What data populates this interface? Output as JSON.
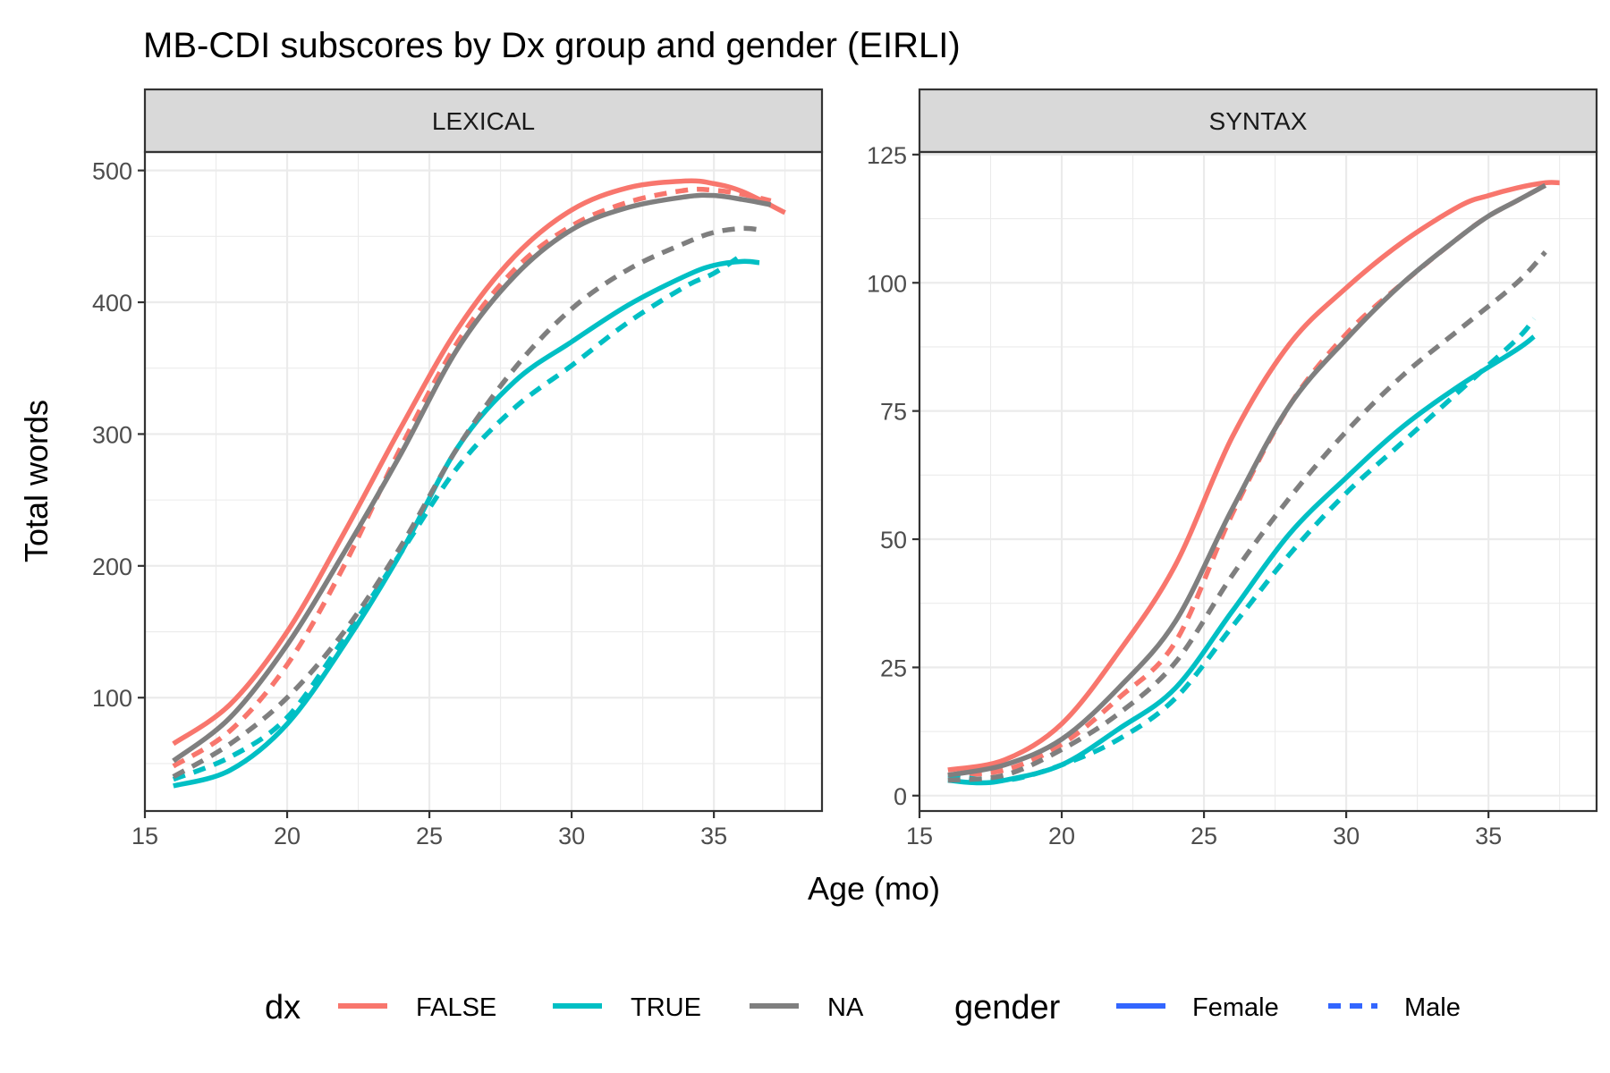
{
  "chart_data": {
    "type": "line",
    "title": "MB-CDI subscores by Dx group and gender (EIRLI)",
    "xlabel": "Age (mo)",
    "ylabel": "Total words",
    "grid": true,
    "legend_position": "bottom",
    "legend": {
      "color_title": "dx",
      "color_entries": [
        {
          "label": "FALSE",
          "color": "#F8766D"
        },
        {
          "label": "TRUE",
          "color": "#00BFC4"
        },
        {
          "label": "NA",
          "color": "#7F7F7F"
        }
      ],
      "linetype_title": "gender",
      "linetype_entries": [
        {
          "label": "Female",
          "linetype": "solid",
          "color": "#3366FF"
        },
        {
          "label": "Male",
          "linetype": "dashed",
          "color": "#3366FF"
        }
      ]
    },
    "panels": [
      {
        "strip": "LEXICAL",
        "xlim": [
          15,
          38.8
        ],
        "ylim": [
          14,
          514
        ],
        "x_ticks": [
          15,
          20,
          25,
          30,
          35
        ],
        "y_ticks": [
          100,
          200,
          300,
          400,
          500
        ],
        "series": [
          {
            "dx": "FALSE",
            "gender": "Female",
            "color": "#F8766D",
            "linetype": "solid",
            "x": [
              16,
              18,
              20,
              22,
              24,
              26,
              28,
              30,
              32,
              34,
              35,
              36,
              37.5
            ],
            "y": [
              65,
              95,
              150,
              225,
              305,
              380,
              435,
              470,
              487,
              492,
              490,
              484,
              468
            ]
          },
          {
            "dx": "FALSE",
            "gender": "Male",
            "color": "#F8766D",
            "linetype": "dashed",
            "x": [
              16,
              18,
              20,
              22,
              24,
              26,
              28,
              30,
              32,
              34,
              35,
              36,
              37
            ],
            "y": [
              48,
              75,
              125,
              200,
              290,
              370,
              425,
              458,
              476,
              485,
              485,
              482,
              477
            ]
          },
          {
            "dx": "TRUE",
            "gender": "Female",
            "color": "#00BFC4",
            "linetype": "solid",
            "x": [
              16,
              18,
              20,
              22,
              24,
              26,
              28,
              30,
              32,
              34,
              35,
              36,
              36.6
            ],
            "y": [
              33,
              45,
              80,
              140,
              210,
              290,
              340,
              370,
              398,
              420,
              428,
              431,
              430
            ]
          },
          {
            "dx": "TRUE",
            "gender": "Male",
            "color": "#00BFC4",
            "linetype": "dashed",
            "x": [
              16,
              18,
              20,
              22,
              24,
              26,
              28,
              30,
              32,
              34,
              35,
              36
            ],
            "y": [
              38,
              55,
              85,
              145,
              210,
              275,
              320,
              352,
              385,
              412,
              422,
              436
            ]
          },
          {
            "dx": "NA",
            "gender": "Female",
            "color": "#7F7F7F",
            "linetype": "solid",
            "x": [
              16,
              18,
              20,
              22,
              24,
              26,
              28,
              30,
              32,
              34,
              35,
              36,
              37
            ],
            "y": [
              52,
              85,
              140,
              210,
              285,
              365,
              420,
              455,
              472,
              480,
              481,
              478,
              474
            ]
          },
          {
            "dx": "NA",
            "gender": "Male",
            "color": "#7F7F7F",
            "linetype": "dashed",
            "x": [
              16,
              18,
              20,
              22,
              24,
              26,
              28,
              30,
              32,
              34,
              35,
              36,
              36.6
            ],
            "y": [
              40,
              65,
              100,
              150,
              215,
              290,
              350,
              395,
              425,
              445,
              453,
              456,
              455
            ]
          }
        ]
      },
      {
        "strip": "SYNTAX",
        "xlim": [
          15,
          38.8
        ],
        "ylim": [
          -3,
          125.5
        ],
        "x_ticks": [
          15,
          20,
          25,
          30,
          35
        ],
        "y_ticks": [
          0,
          25,
          50,
          75,
          100,
          125
        ],
        "series": [
          {
            "dx": "FALSE",
            "gender": "Female",
            "color": "#F8766D",
            "linetype": "solid",
            "x": [
              16,
              18,
              20,
              22,
              24,
              26,
              28,
              30,
              32,
              34,
              35,
              36,
              37,
              37.5
            ],
            "y": [
              5,
              7,
              14,
              28,
              45,
              70,
              88,
              99,
              108,
              115,
              117,
              118.5,
              119.5,
              119.5
            ]
          },
          {
            "dx": "FALSE",
            "gender": "Male",
            "color": "#F8766D",
            "linetype": "dashed",
            "x": [
              16,
              18,
              20,
              22,
              24,
              26,
              28,
              30,
              32,
              34,
              35,
              36,
              37
            ],
            "y": [
              4,
              5,
              10,
              19,
              30,
              55,
              76,
              90,
              100,
              109,
              113,
              116,
              119
            ]
          },
          {
            "dx": "TRUE",
            "gender": "Female",
            "color": "#00BFC4",
            "linetype": "solid",
            "x": [
              16,
              17,
              18,
              20,
              22,
              24,
              26,
              28,
              30,
              32,
              34,
              36,
              36.6
            ],
            "y": [
              3,
              2.5,
              3,
              6,
              13,
              21,
              36,
              51,
              62,
              72,
              80,
              87,
              89.5
            ]
          },
          {
            "dx": "TRUE",
            "gender": "Male",
            "color": "#00BFC4",
            "linetype": "dashed",
            "x": [
              16,
              18,
              20,
              22,
              24,
              26,
              28,
              30,
              32,
              34,
              36,
              36.6
            ],
            "y": [
              4,
              3,
              6,
              11,
              19,
              33,
              47,
              59,
              69,
              79,
              89,
              93
            ]
          },
          {
            "dx": "NA",
            "gender": "Female",
            "color": "#7F7F7F",
            "linetype": "solid",
            "x": [
              16,
              18,
              20,
              22,
              24,
              26,
              28,
              30,
              32,
              34,
              35,
              36,
              37
            ],
            "y": [
              4,
              6,
              11,
              21,
              34,
              56,
              76,
              89,
              100,
              109,
              113,
              116,
              119
            ]
          },
          {
            "dx": "NA",
            "gender": "Male",
            "color": "#7F7F7F",
            "linetype": "dashed",
            "x": [
              16,
              18,
              20,
              22,
              24,
              26,
              28,
              30,
              32,
              34,
              36,
              37
            ],
            "y": [
              3,
              4,
              9,
              16,
              26,
              43,
              58,
              71,
              82,
              91,
              100,
              106
            ]
          }
        ]
      }
    ]
  }
}
